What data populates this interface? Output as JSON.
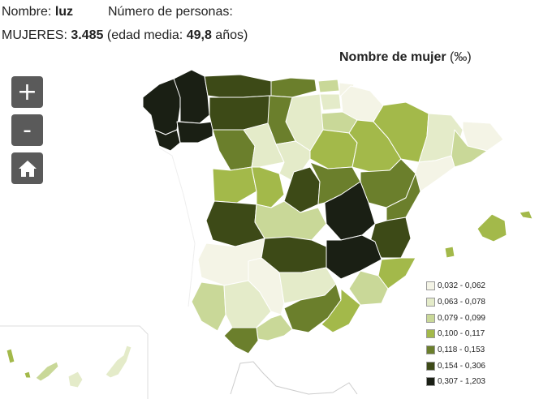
{
  "header": {
    "name_label": "Nombre:",
    "name_value": "luz",
    "persons_label": "Número de personas:",
    "women_label": "MUJERES:",
    "women_value": "3.485",
    "age_open": "(edad media:",
    "age_value": "49,8",
    "age_close": "años)"
  },
  "map": {
    "title": "Nombre de mujer",
    "unit": "(‰)"
  },
  "controls": {
    "zoom_in": "+",
    "zoom_out": "-",
    "home_icon": "home-icon"
  },
  "legend": [
    {
      "label": "0,032 - 0,062",
      "color": "#f4f4e6"
    },
    {
      "label": "0,063 - 0,078",
      "color": "#e4ebc9"
    },
    {
      "label": "0,079 - 0,099",
      "color": "#c9d898"
    },
    {
      "label": "0,100 - 0,117",
      "color": "#a3b94a"
    },
    {
      "label": "0,118 - 0,153",
      "color": "#6b7f2c"
    },
    {
      "label": "0,154 - 0,306",
      "color": "#3d4a17"
    },
    {
      "label": "0,307 - 1,203",
      "color": "#1a1f14"
    }
  ]
}
